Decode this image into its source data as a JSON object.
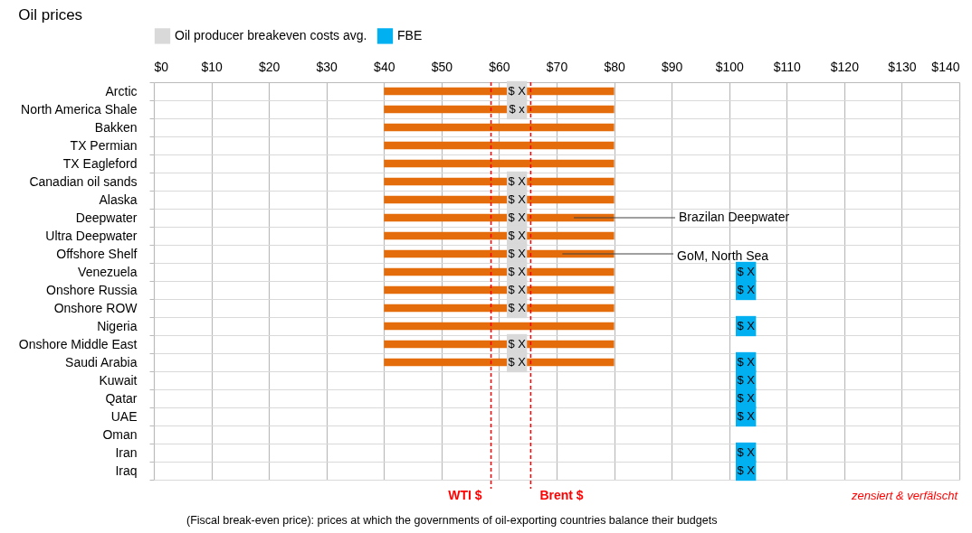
{
  "chart_data": {
    "type": "bar",
    "orientation": "horizontal",
    "title": "Oil prices",
    "categories": [
      "Arctic",
      "North America Shale",
      "Bakken",
      "TX Permian",
      "TX Eagleford",
      "Canadian oil sands",
      "Alaska",
      "Deepwater",
      "Ultra Deepwater",
      "Offshore Shelf",
      "Venezuela",
      "Onshore Russia",
      "Onshore ROW",
      "Nigeria",
      "Onshore Middle East",
      "Saudi Arabia",
      "Kuwait",
      "Qatar",
      "UAE",
      "Oman",
      "Iran",
      "Iraq"
    ],
    "series": [
      {
        "type": "bar",
        "color": "#e46c0a",
        "base": [
          40,
          40,
          40,
          40,
          40,
          40,
          40,
          40,
          40,
          40,
          40,
          40,
          40,
          40,
          40,
          40,
          null,
          null,
          null,
          null,
          null,
          null
        ],
        "values": [
          40,
          40,
          40,
          40,
          40,
          40,
          40,
          40,
          40,
          40,
          40,
          40,
          40,
          40,
          40,
          40,
          null,
          null,
          null,
          null,
          null,
          null
        ]
      },
      {
        "type": "scatter",
        "name": "Oil producer breakeven costs avg.",
        "color": "#d9d9d9",
        "marker": "square",
        "values": [
          63.1,
          63.1,
          null,
          null,
          null,
          63.1,
          63.1,
          63.1,
          63.1,
          63.1,
          63.1,
          63.1,
          63.1,
          null,
          63.1,
          63.1,
          null,
          null,
          null,
          null,
          null,
          null
        ],
        "value_labels": [
          "$ X",
          "$ x",
          null,
          null,
          null,
          "$ X",
          "$ X",
          "$ X",
          "$ X",
          "$ X",
          "$ X",
          "$ X",
          "$ X",
          null,
          "$ X",
          "$ X",
          null,
          null,
          null,
          null,
          null,
          null
        ]
      },
      {
        "type": "scatter",
        "name": "FBE",
        "color": "#00b0f0",
        "marker": "square",
        "values": [
          null,
          null,
          null,
          null,
          null,
          null,
          null,
          null,
          null,
          null,
          102.9,
          102.9,
          null,
          102.9,
          null,
          102.9,
          102.9,
          102.9,
          102.9,
          null,
          102.9,
          102.9
        ],
        "value_labels": [
          null,
          null,
          null,
          null,
          null,
          null,
          null,
          null,
          null,
          null,
          "$ X",
          "$ X",
          null,
          "$ X",
          null,
          "$ X",
          "$ X",
          "$ X",
          "$ X",
          null,
          "$ X",
          "$ X"
        ]
      }
    ],
    "xlim": [
      0,
      140
    ],
    "xticks": [
      {
        "value": 0,
        "label": "$0"
      },
      {
        "value": 10,
        "label": "$10"
      },
      {
        "value": 20,
        "label": "$20"
      },
      {
        "value": 30,
        "label": "$30"
      },
      {
        "value": 40,
        "label": "$40"
      },
      {
        "value": 50,
        "label": "$50"
      },
      {
        "value": 60,
        "label": "$60"
      },
      {
        "value": 70,
        "label": "$70"
      },
      {
        "value": 80,
        "label": "$80"
      },
      {
        "value": 90,
        "label": "$90"
      },
      {
        "value": 100,
        "label": "$100"
      },
      {
        "value": 110,
        "label": "$110"
      },
      {
        "value": 120,
        "label": "$120"
      },
      {
        "value": 130,
        "label": "$130"
      },
      {
        "value": 140,
        "label": "$140"
      }
    ],
    "grid": true,
    "legend": "top",
    "ref_lines": [
      {
        "axis": "x",
        "value": 58.6,
        "label": "WTI $",
        "color": "#ff0000",
        "line_style": "dashed"
      },
      {
        "axis": "x",
        "value": 65.5,
        "label": "Brent $",
        "color": "#ff0000",
        "line_style": "dashed"
      }
    ],
    "annotations": [
      {
        "text": "Brazilan Deepwater",
        "x": 73,
        "y": "Deepwater"
      },
      {
        "text": "GoM, North Sea",
        "x": 71,
        "y": "Offshore Shelf"
      },
      "zensiert & verfälscht",
      "(Fiscal break-even price): prices at which the governments of oil-exporting countries balance their budgets"
    ]
  }
}
